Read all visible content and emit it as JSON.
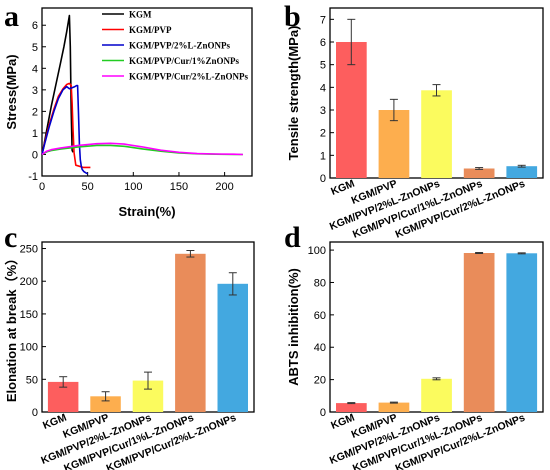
{
  "chart_data": [
    {
      "panel": "a",
      "type": "line",
      "xlabel": "Strain(%)",
      "ylabel": "Stress(MPa)",
      "xlim": [
        0,
        230
      ],
      "ylim": [
        -1,
        6.8
      ],
      "xticks": [
        0,
        50,
        100,
        150,
        200
      ],
      "yticks": [
        -1,
        0,
        1,
        2,
        3,
        4,
        5,
        6
      ],
      "legend_position": "top-right",
      "series": [
        {
          "name": "KGM",
          "color": "#000000",
          "x": [
            0,
            2,
            5,
            10,
            15,
            20,
            24,
            27,
            29,
            30,
            31,
            32,
            33,
            34
          ],
          "y": [
            0,
            0.4,
            1.1,
            2.2,
            3.2,
            4.2,
            5.0,
            5.7,
            6.2,
            6.45,
            5.0,
            2.0,
            0.2,
            0.1
          ]
        },
        {
          "name": "KGM/PVP",
          "color": "#ff0000",
          "x": [
            0,
            3,
            8,
            13,
            18,
            23,
            27,
            30,
            32,
            33,
            34,
            35,
            37,
            45,
            52,
            53
          ],
          "y": [
            0,
            0.55,
            1.4,
            2.1,
            2.7,
            3.05,
            3.25,
            3.3,
            3.2,
            2.4,
            1.2,
            0.1,
            -0.5,
            -0.6,
            -0.6,
            -0.6
          ]
        },
        {
          "name": "KGM/PVP/2%L-ZnONPs",
          "color": "#0000cc",
          "x": [
            0,
            3,
            8,
            13,
            18,
            23,
            27,
            30,
            33,
            36,
            38,
            39,
            40,
            41,
            42,
            43,
            44,
            46,
            48,
            50
          ],
          "y": [
            0,
            0.5,
            1.3,
            2.0,
            2.6,
            3.0,
            3.15,
            3.05,
            3.1,
            3.15,
            3.2,
            3.2,
            1.9,
            0.5,
            -0.25,
            -0.55,
            -0.7,
            -0.8,
            -0.85,
            -0.9
          ]
        },
        {
          "name": "KGM/PVP/Cur/1%ZnONPs",
          "color": "#22cc22",
          "x": [
            0,
            5,
            10,
            20,
            40,
            60,
            75,
            90,
            110,
            130,
            150,
            170,
            190,
            210,
            220
          ],
          "y": [
            0,
            0.12,
            0.18,
            0.25,
            0.35,
            0.42,
            0.42,
            0.38,
            0.26,
            0.15,
            0.07,
            0.03,
            0.01,
            0.0,
            0.0
          ]
        },
        {
          "name": "KGM/PVP/Cur/2%L-ZnONPs",
          "color": "#ff00ff",
          "x": [
            0,
            5,
            10,
            20,
            40,
            60,
            75,
            90,
            110,
            130,
            150,
            170,
            190,
            210,
            220
          ],
          "y": [
            0,
            0.15,
            0.22,
            0.3,
            0.42,
            0.5,
            0.52,
            0.48,
            0.35,
            0.2,
            0.1,
            0.04,
            0.02,
            0.01,
            0.0
          ]
        }
      ]
    },
    {
      "panel": "b",
      "type": "bar",
      "ylabel": "Tensile strength(MPa)",
      "ylim": [
        0,
        7.5
      ],
      "yticks": [
        0,
        1,
        2,
        3,
        4,
        5,
        6,
        7
      ],
      "categories": [
        "KGM",
        "KGM/PVP",
        "KGM/PVP/2%L-ZnONPs",
        "KGM/PVP/Cur/1%L-ZnONPs",
        "KGM/PVP/Cur/2%L-ZnONPs"
      ],
      "values": [
        6.0,
        3.0,
        3.87,
        0.42,
        0.52
      ],
      "errors": [
        1.0,
        0.47,
        0.25,
        0.04,
        0.04
      ],
      "colors": [
        "#fd5e5e",
        "#fdae4e",
        "#fbfb5e",
        "#e98c5a",
        "#43a8e0"
      ]
    },
    {
      "panel": "c",
      "type": "bar",
      "ylabel": "Elonation at break（%）",
      "ylim": [
        0,
        260
      ],
      "yticks": [
        0,
        50,
        100,
        150,
        200,
        250
      ],
      "categories": [
        "KGM",
        "KGM/PVP",
        "KGM/PVP/2%L-ZnONPs",
        "KGM/PVP/Cur/1%L-ZnONPs",
        "KGM/PVP/Cur/2%L-ZnONPs"
      ],
      "values": [
        46,
        24,
        48,
        242,
        196
      ],
      "errors": [
        8,
        7,
        13,
        5,
        17
      ],
      "colors": [
        "#fd5e5e",
        "#fdae4e",
        "#fbfb5e",
        "#e98c5a",
        "#43a8e0"
      ]
    },
    {
      "panel": "d",
      "type": "bar",
      "ylabel": "ABTS inhibition(%)",
      "ylim": [
        0,
        105
      ],
      "yticks": [
        0,
        20,
        40,
        60,
        80,
        100
      ],
      "categories": [
        "KGM",
        "KGM/PVP",
        "KGM/PVP/2%L-ZnONPs",
        "KGM/PVP/Cur/1%L-ZnONPs",
        "KGM/PVP/Cur/2%L-ZnONPs"
      ],
      "values": [
        5.5,
        5.8,
        20.5,
        98.2,
        98.0
      ],
      "errors": [
        0.3,
        0.3,
        0.6,
        0.3,
        0.3
      ],
      "colors": [
        "#fd5e5e",
        "#fdae4e",
        "#fbfb5e",
        "#e98c5a",
        "#43a8e0"
      ]
    }
  ]
}
